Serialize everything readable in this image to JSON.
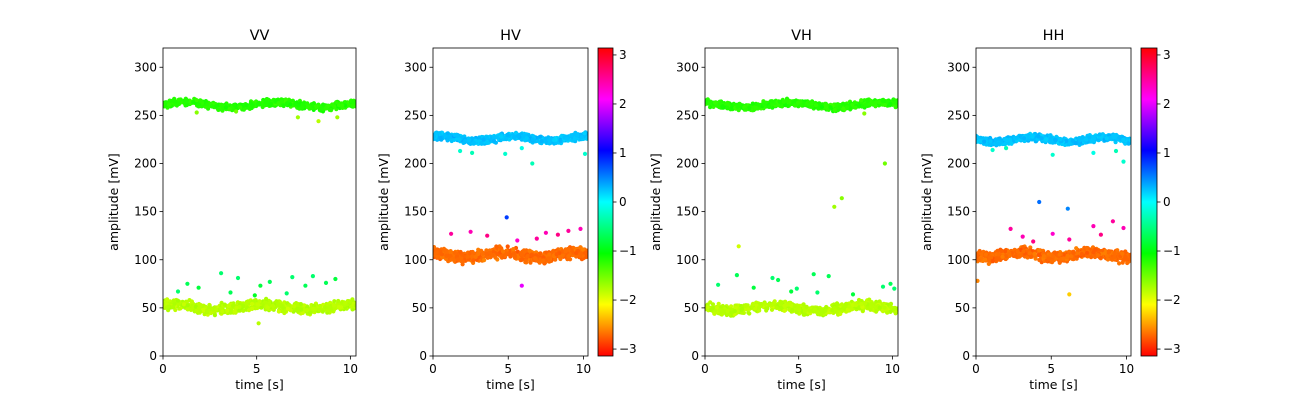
{
  "chart_data": [
    {
      "type": "scatter",
      "title": "VV",
      "xlabel": "time [s]",
      "ylabel": "amplitude [mV]",
      "xlim": [
        0,
        10.3
      ],
      "ylim": [
        0,
        320
      ],
      "xticks": [
        0,
        5,
        10
      ],
      "yticks": [
        0,
        50,
        100,
        150,
        200,
        250,
        300
      ],
      "colorbar": false,
      "bands": [
        {
          "y_center": 261,
          "spread": 5,
          "phase": -1.2
        },
        {
          "y_center": 51,
          "spread": 7,
          "phase": -1.8
        }
      ],
      "outliers": [
        {
          "x": 1.8,
          "y": 253,
          "phase": -1.6
        },
        {
          "x": 3.9,
          "y": 254,
          "phase": -1.5
        },
        {
          "x": 7.2,
          "y": 248,
          "phase": -1.7
        },
        {
          "x": 8.3,
          "y": 244,
          "phase": -1.8
        },
        {
          "x": 9.3,
          "y": 248,
          "phase": -1.7
        },
        {
          "x": 0.8,
          "y": 67,
          "phase": -0.6
        },
        {
          "x": 1.3,
          "y": 75,
          "phase": -0.7
        },
        {
          "x": 1.9,
          "y": 71,
          "phase": -0.8
        },
        {
          "x": 3.1,
          "y": 86,
          "phase": -0.6
        },
        {
          "x": 3.6,
          "y": 66,
          "phase": -0.7
        },
        {
          "x": 4.0,
          "y": 81,
          "phase": -0.6
        },
        {
          "x": 5.2,
          "y": 73,
          "phase": -0.8
        },
        {
          "x": 5.7,
          "y": 77,
          "phase": -0.7
        },
        {
          "x": 6.6,
          "y": 65,
          "phase": -0.6
        },
        {
          "x": 6.9,
          "y": 82,
          "phase": -0.6
        },
        {
          "x": 7.6,
          "y": 73,
          "phase": -0.7
        },
        {
          "x": 8.0,
          "y": 83,
          "phase": -0.6
        },
        {
          "x": 8.7,
          "y": 76,
          "phase": -0.7
        },
        {
          "x": 9.2,
          "y": 80,
          "phase": -0.8
        },
        {
          "x": 5.1,
          "y": 34,
          "phase": -1.8
        },
        {
          "x": 4.9,
          "y": 63,
          "phase": -0.9
        }
      ]
    },
    {
      "type": "scatter",
      "title": "HV",
      "xlabel": "time [s]",
      "ylabel": "amplitude [mV]",
      "xlim": [
        0,
        10.3
      ],
      "ylim": [
        0,
        320
      ],
      "xticks": [
        0,
        5,
        10
      ],
      "yticks": [
        0,
        50,
        100,
        150,
        200,
        250,
        300
      ],
      "colorbar": true,
      "colorbar_ticks": [
        -3,
        -2,
        -1,
        0,
        1,
        2,
        3
      ],
      "bands": [
        {
          "y_center": 226,
          "spread": 5,
          "phase": 0.25
        },
        {
          "y_center": 105,
          "spread": 8,
          "phase": -2.7
        }
      ],
      "outliers": [
        {
          "x": 1.8,
          "y": 213,
          "phase": -0.2
        },
        {
          "x": 2.6,
          "y": 211,
          "phase": -0.3
        },
        {
          "x": 4.8,
          "y": 210,
          "phase": -0.2
        },
        {
          "x": 5.9,
          "y": 216,
          "phase": -0.1
        },
        {
          "x": 6.6,
          "y": 200,
          "phase": -0.3
        },
        {
          "x": 10.1,
          "y": 210,
          "phase": -0.2
        },
        {
          "x": 1.2,
          "y": 127,
          "phase": 2.5
        },
        {
          "x": 2.5,
          "y": 129,
          "phase": 2.4
        },
        {
          "x": 3.6,
          "y": 125,
          "phase": 2.6
        },
        {
          "x": 5.6,
          "y": 120,
          "phase": 2.3
        },
        {
          "x": 6.9,
          "y": 122,
          "phase": 2.5
        },
        {
          "x": 7.5,
          "y": 128,
          "phase": 2.4
        },
        {
          "x": 8.3,
          "y": 126,
          "phase": 2.6
        },
        {
          "x": 9.0,
          "y": 130,
          "phase": 2.5
        },
        {
          "x": 9.8,
          "y": 132,
          "phase": 2.4
        },
        {
          "x": 4.9,
          "y": 144,
          "phase": 0.8
        },
        {
          "x": 5.9,
          "y": 73,
          "phase": 2.0
        }
      ]
    },
    {
      "type": "scatter",
      "title": "VH",
      "xlabel": "time [s]",
      "ylabel": "amplitude [mV]",
      "xlim": [
        0,
        10.3
      ],
      "ylim": [
        0,
        320
      ],
      "xticks": [
        0,
        5,
        10
      ],
      "yticks": [
        0,
        50,
        100,
        150,
        200,
        250,
        300
      ],
      "colorbar": false,
      "bands": [
        {
          "y_center": 261,
          "spread": 5,
          "phase": -1.2
        },
        {
          "y_center": 50,
          "spread": 7,
          "phase": -1.8
        }
      ],
      "outliers": [
        {
          "x": 8.5,
          "y": 252,
          "phase": -1.6
        },
        {
          "x": 1.8,
          "y": 114,
          "phase": -1.9
        },
        {
          "x": 6.9,
          "y": 155,
          "phase": -1.7
        },
        {
          "x": 7.3,
          "y": 164,
          "phase": -1.6
        },
        {
          "x": 9.6,
          "y": 200,
          "phase": -1.5
        },
        {
          "x": 0.7,
          "y": 74,
          "phase": -0.6
        },
        {
          "x": 1.7,
          "y": 84,
          "phase": -0.7
        },
        {
          "x": 2.6,
          "y": 71,
          "phase": -0.8
        },
        {
          "x": 3.6,
          "y": 81,
          "phase": -0.6
        },
        {
          "x": 3.9,
          "y": 79,
          "phase": -0.7
        },
        {
          "x": 4.6,
          "y": 67,
          "phase": -0.8
        },
        {
          "x": 4.9,
          "y": 70,
          "phase": -0.6
        },
        {
          "x": 5.8,
          "y": 85,
          "phase": -0.7
        },
        {
          "x": 6.0,
          "y": 66,
          "phase": -0.6
        },
        {
          "x": 6.6,
          "y": 83,
          "phase": -0.7
        },
        {
          "x": 7.9,
          "y": 64,
          "phase": -0.8
        },
        {
          "x": 9.5,
          "y": 72,
          "phase": -0.6
        },
        {
          "x": 9.9,
          "y": 75,
          "phase": -0.7
        },
        {
          "x": 10.1,
          "y": 70,
          "phase": -0.6
        }
      ]
    },
    {
      "type": "scatter",
      "title": "HH",
      "xlabel": "time [s]",
      "ylabel": "amplitude [mV]",
      "xlim": [
        0,
        10.3
      ],
      "ylim": [
        0,
        320
      ],
      "xticks": [
        0,
        5,
        10
      ],
      "yticks": [
        0,
        50,
        100,
        150,
        200,
        250,
        300
      ],
      "colorbar": true,
      "colorbar_ticks": [
        -3,
        -2,
        -1,
        0,
        1,
        2,
        3
      ],
      "bands": [
        {
          "y_center": 225,
          "spread": 5,
          "phase": 0.25
        },
        {
          "y_center": 105,
          "spread": 8,
          "phase": -2.7
        }
      ],
      "outliers": [
        {
          "x": 1.1,
          "y": 214,
          "phase": -0.2
        },
        {
          "x": 2.0,
          "y": 216,
          "phase": -0.3
        },
        {
          "x": 5.1,
          "y": 209,
          "phase": -0.2
        },
        {
          "x": 7.8,
          "y": 211,
          "phase": -0.1
        },
        {
          "x": 9.3,
          "y": 213,
          "phase": -0.3
        },
        {
          "x": 9.8,
          "y": 202,
          "phase": -0.2
        },
        {
          "x": 2.3,
          "y": 132,
          "phase": 2.5
        },
        {
          "x": 3.1,
          "y": 124,
          "phase": 2.4
        },
        {
          "x": 3.8,
          "y": 119,
          "phase": 2.6
        },
        {
          "x": 5.1,
          "y": 127,
          "phase": 2.3
        },
        {
          "x": 6.2,
          "y": 121,
          "phase": 2.5
        },
        {
          "x": 7.8,
          "y": 135,
          "phase": 2.4
        },
        {
          "x": 8.3,
          "y": 126,
          "phase": 2.6
        },
        {
          "x": 9.1,
          "y": 140,
          "phase": 2.5
        },
        {
          "x": 9.8,
          "y": 133,
          "phase": 2.4
        },
        {
          "x": 4.2,
          "y": 160,
          "phase": 0.6
        },
        {
          "x": 6.1,
          "y": 153,
          "phase": 0.5
        },
        {
          "x": 6.2,
          "y": 64,
          "phase": -2.3
        },
        {
          "x": 0.1,
          "y": 78,
          "phase": -2.6
        }
      ]
    }
  ]
}
